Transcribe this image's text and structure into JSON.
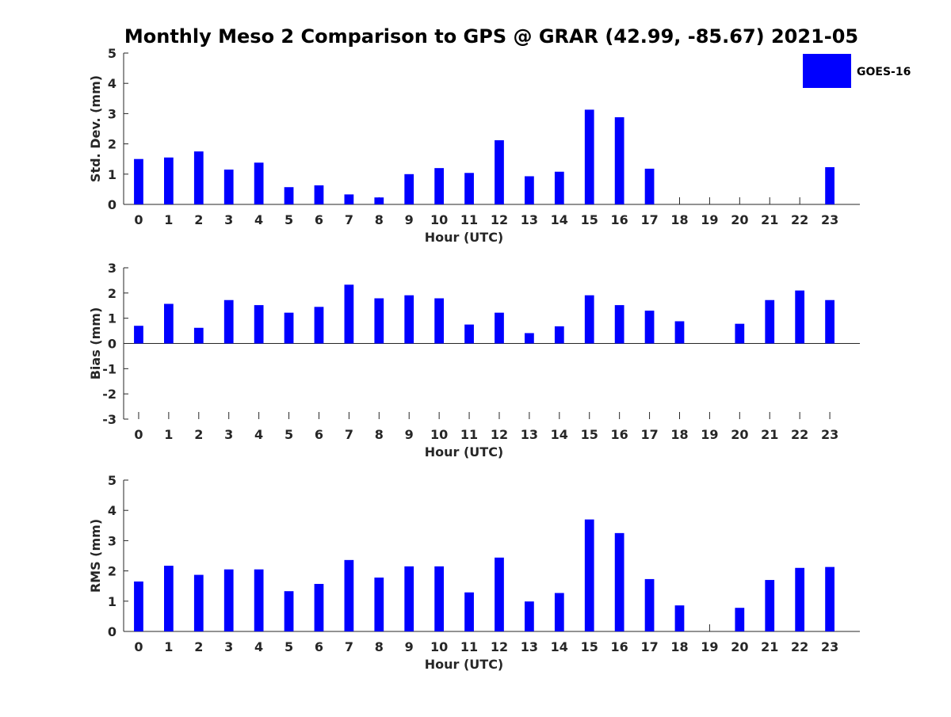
{
  "title": "Monthly Meso 2 Comparison to GPS @ GRAR (42.99, -85.67) 2021-05",
  "legend": {
    "label": "GOES-16",
    "color": "#0000ff",
    "placement": "top-right"
  },
  "chart_data": [
    {
      "type": "bar",
      "categories": [
        "0",
        "1",
        "2",
        "3",
        "4",
        "5",
        "6",
        "7",
        "8",
        "9",
        "10",
        "11",
        "12",
        "13",
        "14",
        "15",
        "16",
        "17",
        "18",
        "19",
        "20",
        "21",
        "22",
        "23"
      ],
      "series": [
        {
          "name": "GOES-16",
          "values": [
            1.5,
            1.55,
            1.75,
            1.15,
            1.38,
            0.57,
            0.63,
            0.33,
            0.23,
            1.0,
            1.2,
            1.04,
            2.12,
            0.93,
            1.08,
            3.13,
            2.88,
            1.18,
            null,
            null,
            null,
            null,
            null,
            1.23
          ]
        }
      ],
      "xlabel": "Hour (UTC)",
      "ylabel": "Std. Dev. (mm)",
      "ylim": [
        0,
        5
      ],
      "yticks": [
        "0",
        "1",
        "2",
        "3",
        "4",
        "5"
      ],
      "color": "#0000ff"
    },
    {
      "type": "bar",
      "categories": [
        "0",
        "1",
        "2",
        "3",
        "4",
        "5",
        "6",
        "7",
        "8",
        "9",
        "10",
        "11",
        "12",
        "13",
        "14",
        "15",
        "16",
        "17",
        "18",
        "19",
        "20",
        "21",
        "22",
        "23"
      ],
      "series": [
        {
          "name": "GOES-16",
          "values": [
            0.7,
            1.57,
            0.62,
            1.72,
            1.52,
            1.22,
            1.45,
            2.33,
            1.79,
            1.91,
            1.79,
            0.75,
            1.22,
            0.41,
            0.68,
            1.91,
            1.52,
            1.3,
            0.88,
            null,
            0.78,
            1.72,
            2.1,
            1.72
          ]
        }
      ],
      "xlabel": "Hour (UTC)",
      "ylabel": "Bias (mm)",
      "ylim": [
        -3,
        3
      ],
      "yticks": [
        "-3",
        "-2",
        "-1",
        "0",
        "1",
        "2",
        "3"
      ],
      "color": "#0000ff"
    },
    {
      "type": "bar",
      "categories": [
        "0",
        "1",
        "2",
        "3",
        "4",
        "5",
        "6",
        "7",
        "8",
        "9",
        "10",
        "11",
        "12",
        "13",
        "14",
        "15",
        "16",
        "17",
        "18",
        "19",
        "20",
        "21",
        "22",
        "23"
      ],
      "series": [
        {
          "name": "GOES-16",
          "values": [
            1.65,
            2.17,
            1.87,
            2.05,
            2.05,
            1.33,
            1.57,
            2.36,
            1.78,
            2.15,
            2.15,
            1.29,
            2.44,
            0.99,
            1.27,
            3.7,
            3.25,
            1.73,
            0.86,
            null,
            0.78,
            1.7,
            2.1,
            2.13
          ]
        }
      ],
      "xlabel": "Hour (UTC)",
      "ylabel": "RMS (mm)",
      "ylim": [
        0,
        5
      ],
      "yticks": [
        "0",
        "1",
        "2",
        "3",
        "4",
        "5"
      ],
      "color": "#0000ff"
    }
  ]
}
